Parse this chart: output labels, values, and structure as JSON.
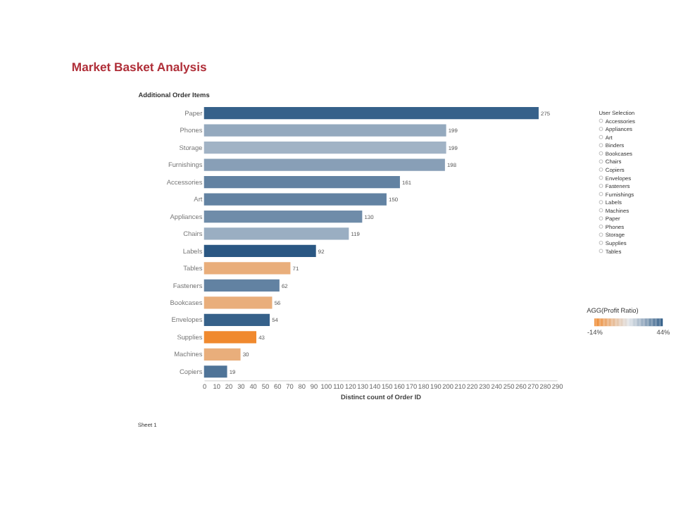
{
  "chart_data": {
    "type": "bar",
    "orientation": "horizontal",
    "title": "Market Basket Analysis",
    "ylabel": "Additional Order Items",
    "xlabel": "Distinct count of Order ID",
    "categories": [
      "Paper",
      "Phones",
      "Storage",
      "Furnishings",
      "Accessories",
      "Art",
      "Appliances",
      "Chairs",
      "Labels",
      "Tables",
      "Fasteners",
      "Bookcases",
      "Envelopes",
      "Supplies",
      "Machines",
      "Copiers"
    ],
    "values": [
      275,
      199,
      199,
      198,
      161,
      150,
      130,
      119,
      92,
      71,
      62,
      56,
      54,
      43,
      30,
      19
    ],
    "cvalues": [
      42,
      27,
      25,
      29,
      35,
      35,
      33,
      26,
      44,
      -2,
      35,
      -2,
      42,
      -14,
      -2,
      38
    ],
    "clabel": "AGG(Profit Ratio)",
    "clim": [
      -14,
      44
    ],
    "cticks": [
      {
        "value": -14,
        "label": "-14%"
      },
      {
        "value": 44,
        "label": "44%"
      }
    ],
    "xlim": [
      0,
      290
    ],
    "xticks": [
      0,
      10,
      20,
      30,
      40,
      50,
      60,
      70,
      80,
      90,
      100,
      110,
      120,
      130,
      140,
      150,
      160,
      170,
      180,
      190,
      200,
      210,
      220,
      230,
      240,
      250,
      260,
      270,
      280,
      290
    ],
    "data_labels": true,
    "grid": false,
    "annotations": [
      "User Selection",
      "Accessories",
      "Appliances",
      "Art",
      "Binders",
      "Bookcases",
      "Chairs",
      "Copiers",
      "Envelopes",
      "Fasteners",
      "Furnishings",
      "Labels",
      "Machines",
      "Paper",
      "Phones",
      "Storage",
      "Supplies",
      "Tables",
      "Sheet 1"
    ]
  }
}
